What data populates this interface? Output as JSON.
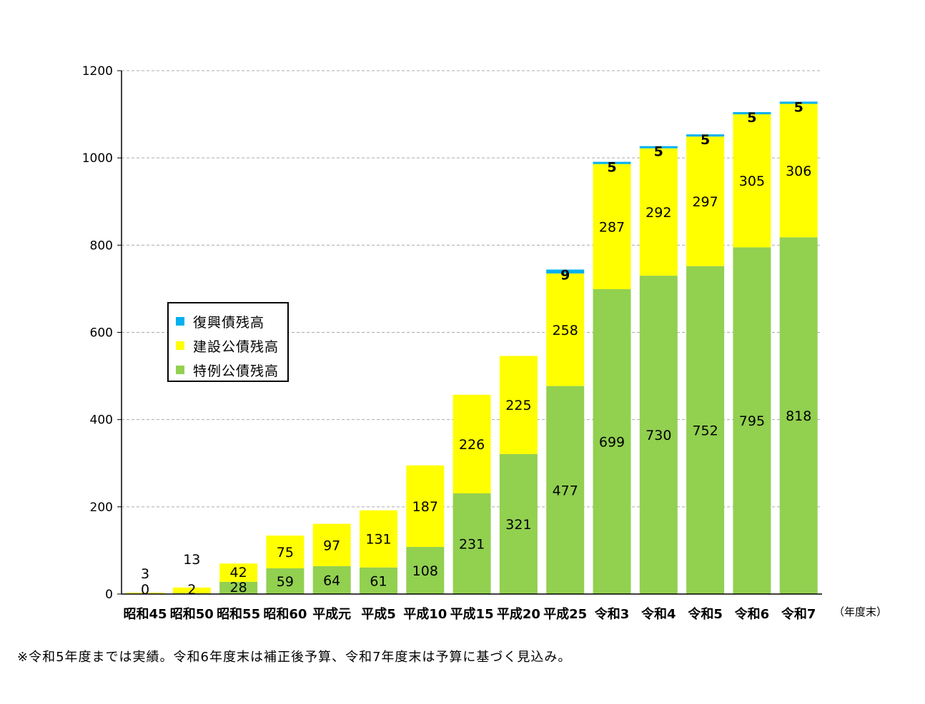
{
  "chart_data": {
    "type": "bar",
    "stacked": true,
    "categories": [
      "昭和45",
      "昭和50",
      "昭和55",
      "昭和60",
      "平成元",
      "平成5",
      "平成10",
      "平成15",
      "平成20",
      "平成25",
      "令和3",
      "令和4",
      "令和5",
      "令和6",
      "令和7"
    ],
    "series": [
      {
        "name": "特例公債残高",
        "color": "#92d050",
        "values": [
          0,
          2,
          28,
          59,
          64,
          61,
          108,
          231,
          321,
          477,
          699,
          730,
          752,
          795,
          818
        ],
        "labels": [
          "0",
          "2",
          "28",
          "59",
          "64",
          "61",
          "108",
          "231",
          "321",
          "477",
          "699",
          "730",
          "752",
          "795",
          "818"
        ]
      },
      {
        "name": "建設公債残高",
        "color": "#ffff00",
        "values": [
          3,
          13,
          42,
          75,
          97,
          131,
          187,
          226,
          225,
          258,
          287,
          292,
          297,
          305,
          306
        ],
        "labels": [
          "3",
          "13",
          "42",
          "75",
          "97",
          "131",
          "187",
          "226",
          "225",
          "258",
          "287",
          "292",
          "297",
          "305",
          "306"
        ]
      },
      {
        "name": "復興債残高",
        "color": "#00b0f0",
        "values": [
          0,
          0,
          0,
          0,
          0,
          0,
          0,
          0,
          0,
          9,
          5,
          5,
          5,
          5,
          5
        ],
        "labels": [
          "",
          "",
          "",
          "",
          "",
          "",
          "",
          "",
          "",
          "9",
          "5",
          "5",
          "5",
          "5",
          "5"
        ]
      }
    ],
    "legend_order": [
      "復興債残高",
      "建設公債残高",
      "特例公債残高"
    ],
    "yticks": [
      "0",
      "200",
      "400",
      "600",
      "800",
      "1000",
      "1200"
    ],
    "ylim": [
      0,
      1200
    ],
    "grid": true,
    "legend_position": "middle-left"
  },
  "unit_label": "（年度末）",
  "note": "※令和5年度までは実績。令和6年度末は補正後予算、令和7年度末は予算に基づく見込み。"
}
